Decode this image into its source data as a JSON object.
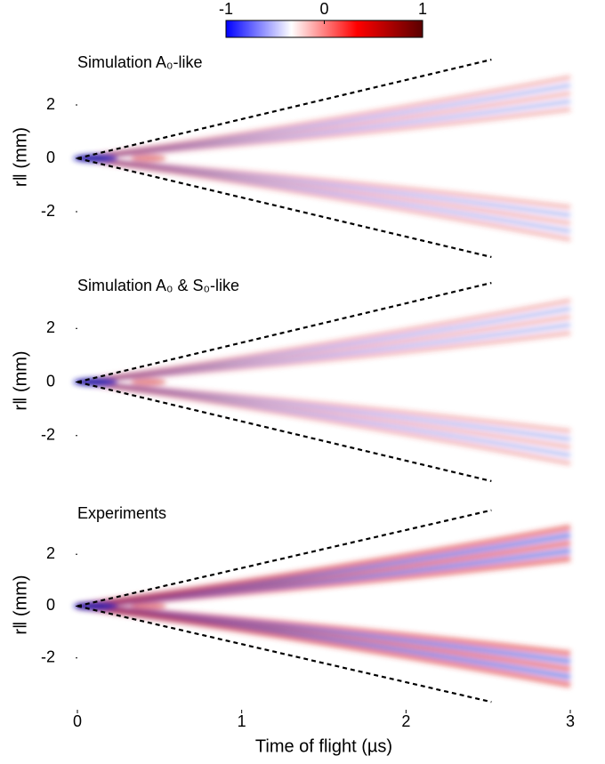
{
  "chart_data": [
    {
      "type": "heatmap",
      "title": "Simulation A₀-like",
      "ylabel": "r‖ (mm)",
      "xlim": [
        0,
        3
      ],
      "ylim": [
        -4,
        4.1
      ],
      "yticks": [
        -2,
        0,
        2
      ],
      "lines": [
        {
          "x": [
            0,
            2.52
          ],
          "y": [
            0,
            3.7
          ]
        },
        {
          "x": [
            0,
            2.52
          ],
          "y": [
            0,
            -3.7
          ]
        }
      ],
      "colorbar": {
        "range": [
          -1,
          1
        ],
        "ticks": [
          -1,
          0,
          1
        ],
        "colors": [
          "#0000ff",
          "#ffffff",
          "#ff0000",
          "#5a0000"
        ]
      }
    },
    {
      "type": "heatmap",
      "title": "Simulation A₀ & S₀-like",
      "ylabel": "r‖ (mm)",
      "xlim": [
        0,
        3
      ],
      "ylim": [
        -4,
        4.1
      ],
      "yticks": [
        -2,
        0,
        2
      ],
      "lines": [
        {
          "x": [
            0,
            2.52
          ],
          "y": [
            0,
            3.7
          ]
        },
        {
          "x": [
            0,
            2.52
          ],
          "y": [
            0,
            -3.7
          ]
        }
      ]
    },
    {
      "type": "heatmap",
      "title": "Experiments",
      "ylabel": "r‖ (mm)",
      "xlabel": "Time of flight (µs)",
      "xlim": [
        0,
        3
      ],
      "ylim": [
        -4,
        4.1
      ],
      "yticks": [
        -2,
        0,
        2
      ],
      "xticks": [
        0,
        1,
        2,
        3
      ],
      "lines": [
        {
          "x": [
            0,
            2.52
          ],
          "y": [
            0,
            3.7
          ]
        },
        {
          "x": [
            0,
            2.52
          ],
          "y": [
            0,
            -3.7
          ]
        }
      ]
    }
  ]
}
